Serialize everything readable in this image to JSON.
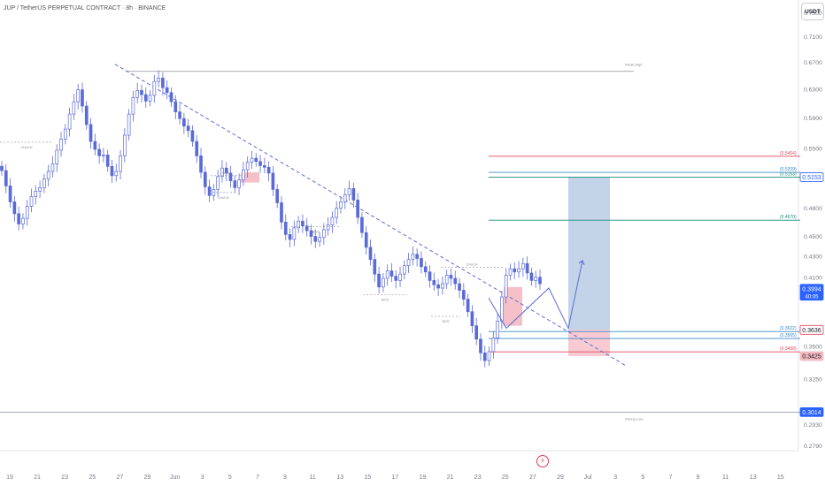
{
  "header": {
    "title": "JUP / TetherUS PERPETUAL CONTRACT · 8h · BINANCE",
    "currency_button": "USDT"
  },
  "colors": {
    "candle": "#5b6bd6",
    "trendline": "#5b6bd6",
    "red_level": "#e0475e",
    "green_level": "#1e8a7a",
    "blue_level": "#3a88c8",
    "swing_line": "#8a8f98",
    "zone_blue": "#b8cbe4",
    "zone_red": "#f4b9c1",
    "badge_last": "#2962ff",
    "badge_red": "#f4b9c1"
  },
  "icons": [
    "tradingview-logo-icon"
  ],
  "chart_data": {
    "type": "candlestick",
    "y_scale": "log",
    "ylim": [
      0.276,
      0.772
    ],
    "y_ticks": [
      "0.7500",
      "0.7100",
      "0.6700",
      "0.6300",
      "0.5900",
      "0.5500",
      "0.5153",
      "0.4800",
      "0.4500",
      "0.4300",
      "0.4100",
      "0.3994",
      "0.3636",
      "0.3500",
      "0.3425",
      "0.3250",
      "0.3014",
      "0.2930",
      "0.2790"
    ],
    "x_ticks": [
      "19",
      "21",
      "23",
      "25",
      "27",
      "29",
      "Jun",
      "3",
      "5",
      "7",
      "9",
      "11",
      "13",
      "15",
      "17",
      "19",
      "21",
      "23",
      "25",
      "27",
      "29",
      "Jul",
      "3",
      "5",
      "7",
      "9",
      "11",
      "13",
      "15"
    ],
    "price_badges": [
      {
        "label": "0.5153",
        "value": 0.5153,
        "style": "outline-blue"
      },
      {
        "label": "0.3994",
        "sub": "40:05",
        "value": 0.3994,
        "style": "filled-blue"
      },
      {
        "label": "0.3636",
        "value": 0.3636,
        "style": "outline-red"
      },
      {
        "label": "0.3425",
        "value": 0.3425,
        "style": "filled-pink"
      },
      {
        "label": "0.3014",
        "value": 0.3014,
        "style": "filled-blue"
      }
    ],
    "levels": [
      {
        "label": "(0.5404)",
        "value": 0.5404,
        "color": "red"
      },
      {
        "label": "(0.5209)",
        "value": 0.5209,
        "color": "blue"
      },
      {
        "label": "(0.5153)",
        "value": 0.5153,
        "color": "green"
      },
      {
        "label": "(0.4670)",
        "value": 0.467,
        "color": "green"
      },
      {
        "label": "(0.3622)",
        "value": 0.3622,
        "color": "blue"
      },
      {
        "label": "(0.3565)",
        "value": 0.3565,
        "color": "blue"
      },
      {
        "label": "(0.3458)",
        "value": 0.3458,
        "color": "red"
      }
    ],
    "annotations": [
      {
        "text": "Weak High",
        "value": 0.656
      },
      {
        "text": "Strong Low",
        "value": 0.3014
      },
      {
        "text": "CHoCH",
        "value": 0.558
      },
      {
        "text": "BOS",
        "value": 0.517
      },
      {
        "text": "CHoCH",
        "value": 0.4975
      },
      {
        "text": "BOS",
        "value": 0.46
      },
      {
        "text": "BOS",
        "value": 0.394
      },
      {
        "text": "CHoCH",
        "value": 0.4195
      },
      {
        "text": "BOS",
        "value": 0.375
      }
    ],
    "trendline": {
      "from": 0.656,
      "to": 0.3355
    },
    "projection_path": [
      0.391,
      0.365,
      0.4,
      0.365,
      0.426
    ],
    "zones": [
      {
        "kind": "supply",
        "top": 0.521,
        "bottom": 0.509
      },
      {
        "kind": "supply",
        "top": 0.401,
        "bottom": 0.367
      },
      {
        "kind": "position-target",
        "top": 0.5153,
        "bottom": 0.3636
      },
      {
        "kind": "position-stop",
        "top": 0.3636,
        "bottom": 0.3425
      }
    ],
    "closes": [
      0.523,
      0.505,
      0.487,
      0.474,
      0.463,
      0.469,
      0.482,
      0.493,
      0.499,
      0.503,
      0.513,
      0.522,
      0.531,
      0.548,
      0.562,
      0.575,
      0.595,
      0.612,
      0.629,
      0.606,
      0.581,
      0.559,
      0.549,
      0.541,
      0.542,
      0.528,
      0.517,
      0.522,
      0.541,
      0.567,
      0.595,
      0.618,
      0.628,
      0.622,
      0.613,
      0.621,
      0.641,
      0.646,
      0.632,
      0.625,
      0.612,
      0.598,
      0.589,
      0.579,
      0.573,
      0.559,
      0.541,
      0.521,
      0.504,
      0.494,
      0.501,
      0.516,
      0.526,
      0.52,
      0.511,
      0.503,
      0.512,
      0.524,
      0.533,
      0.538,
      0.534,
      0.529,
      0.527,
      0.52,
      0.501,
      0.486,
      0.465,
      0.452,
      0.447,
      0.459,
      0.466,
      0.461,
      0.456,
      0.45,
      0.445,
      0.449,
      0.457,
      0.462,
      0.47,
      0.48,
      0.487,
      0.495,
      0.502,
      0.489,
      0.47,
      0.454,
      0.439,
      0.427,
      0.413,
      0.401,
      0.409,
      0.416,
      0.411,
      0.407,
      0.413,
      0.421,
      0.427,
      0.432,
      0.428,
      0.42,
      0.415,
      0.407,
      0.403,
      0.4,
      0.404,
      0.412,
      0.409,
      0.404,
      0.398,
      0.39,
      0.379,
      0.367,
      0.356,
      0.345,
      0.339,
      0.346,
      0.357,
      0.371,
      0.392,
      0.412,
      0.418,
      0.415,
      0.418,
      0.423,
      0.414,
      0.407,
      0.41,
      0.404
    ]
  }
}
